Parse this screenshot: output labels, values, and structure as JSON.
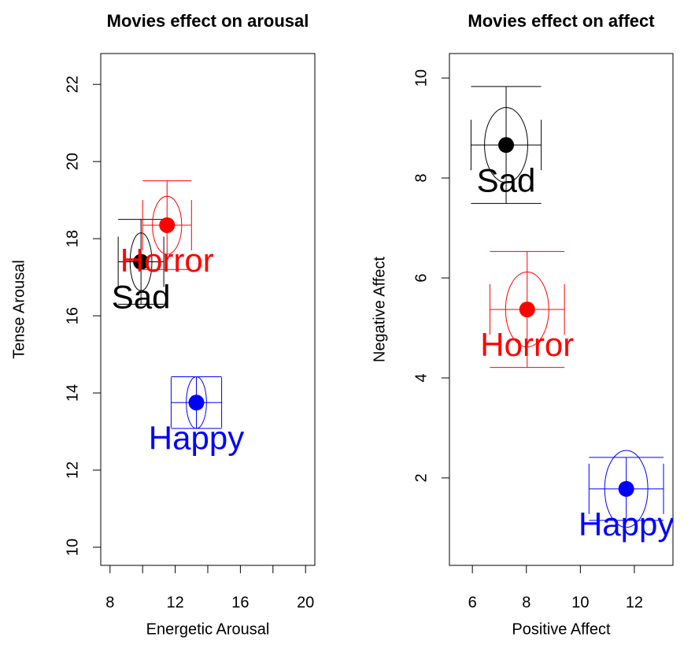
{
  "chart_data": [
    {
      "type": "scatter",
      "title": "Movies effect on arousal",
      "xlabel": "Energetic Arousal",
      "ylabel": "Tense Arousal",
      "xlim": [
        7.43,
        20.57
      ],
      "ylim": [
        9.53,
        22.8
      ],
      "xticks": [
        8,
        10,
        12,
        14,
        16,
        18,
        20
      ],
      "xticklabels": [
        8,
        null,
        12,
        null,
        16,
        null,
        20
      ],
      "yticks": [
        10,
        12,
        14,
        16,
        18,
        20,
        22
      ],
      "series": [
        {
          "name": "Sad",
          "color": "#000000",
          "x": [
            9.9
          ],
          "values": [
            17.4
          ],
          "xerr": [
            1.4
          ],
          "yerr": [
            1.1
          ],
          "ellipse_rx": [
            0.67
          ],
          "ellipse_ry": [
            0.75
          ]
        },
        {
          "name": "Horror",
          "color": "#ff0000",
          "x": [
            11.5
          ],
          "values": [
            18.35
          ],
          "xerr": [
            1.5
          ],
          "yerr": [
            1.15
          ],
          "ellipse_rx": [
            0.9
          ],
          "ellipse_ry": [
            0.75
          ]
        },
        {
          "name": "Happy",
          "color": "#0000ff",
          "x": [
            13.3
          ],
          "values": [
            13.75
          ],
          "xerr": [
            1.55
          ],
          "yerr": [
            0.67
          ],
          "ellipse_rx": [
            0.62
          ],
          "ellipse_ry": [
            0.67
          ]
        }
      ]
    },
    {
      "type": "scatter",
      "title": "Movies effect on affect",
      "xlabel": "Positive Affect",
      "ylabel": "Negative Affect",
      "xlim": [
        5.15,
        13.43
      ],
      "ylim": [
        0.25,
        10.49
      ],
      "xticks": [
        6,
        8,
        10,
        12
      ],
      "xticklabels": [
        6,
        8,
        10,
        12
      ],
      "yticks": [
        2,
        4,
        6,
        8,
        10
      ],
      "series": [
        {
          "name": "Sad",
          "color": "#000000",
          "x": [
            7.25
          ],
          "values": [
            8.66
          ],
          "xerr": [
            1.3
          ],
          "yerr": [
            1.17
          ],
          "ellipse_rx": [
            0.8
          ],
          "ellipse_ry": [
            0.75
          ]
        },
        {
          "name": "Horror",
          "color": "#ff0000",
          "x": [
            8.03
          ],
          "values": [
            5.37
          ],
          "xerr": [
            1.38
          ],
          "yerr": [
            1.16
          ],
          "ellipse_rx": [
            0.8
          ],
          "ellipse_ry": [
            0.75
          ]
        },
        {
          "name": "Happy",
          "color": "#0000ff",
          "x": [
            11.7
          ],
          "values": [
            1.78
          ],
          "xerr": [
            1.38
          ],
          "yerr": [
            0.63
          ],
          "ellipse_rx": [
            0.8
          ],
          "ellipse_ry": [
            0.77
          ]
        }
      ]
    }
  ]
}
